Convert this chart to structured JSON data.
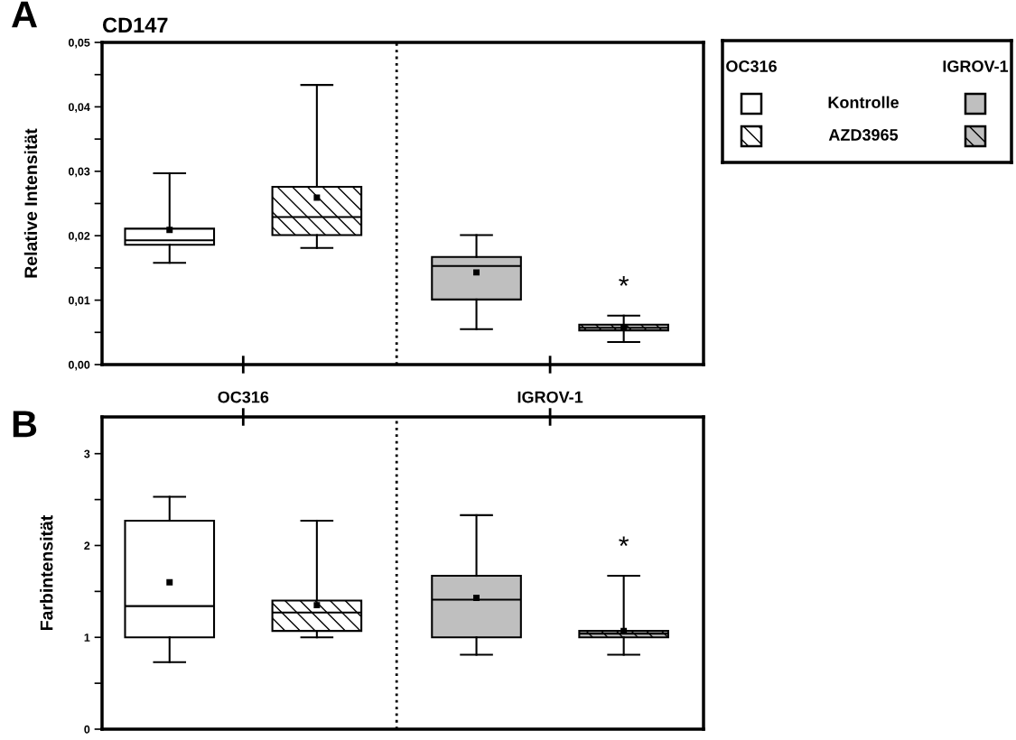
{
  "chart_data": [
    {
      "type": "box",
      "title": "CD147",
      "ylabel": "Relative Intensität",
      "categories": [
        "OC316",
        "IGROV-1"
      ],
      "legend": "right",
      "grid": false,
      "tick_labels": true,
      "ylim": [
        0,
        0.05
      ],
      "yticks": [
        {
          "value": 0,
          "label": "0,00"
        },
        {
          "value": 0.005,
          "label": null
        },
        {
          "value": 0.01,
          "label": "0,01"
        },
        {
          "value": 0.015,
          "label": null
        },
        {
          "value": 0.02,
          "label": "0,02"
        },
        {
          "value": 0.025,
          "label": null
        },
        {
          "value": 0.03,
          "label": "0,03"
        },
        {
          "value": 0.035,
          "label": null
        },
        {
          "value": 0.04,
          "label": "0,04"
        },
        {
          "value": 0.045,
          "label": null
        },
        {
          "value": 0.05,
          "label": "0,05"
        }
      ],
      "annotations": [
        "A",
        "*"
      ],
      "series": [
        {
          "name": "Kontrolle",
          "colors": [
            "#ffffff",
            "#bfbfbf"
          ],
          "boxes": [
            {
              "low": 0.0158,
              "q1": 0.0186,
              "median": 0.0193,
              "q3": 0.0211,
              "high": 0.0297,
              "mean": 0.0209
            },
            {
              "low": 0.0055,
              "q1": 0.0101,
              "median": 0.0153,
              "q3": 0.0167,
              "high": 0.0201,
              "mean": 0.0143
            }
          ]
        },
        {
          "name": "AZD3965",
          "colors": [
            "#ffffff",
            "#bfbfbf"
          ],
          "boxes": [
            {
              "low": 0.0181,
              "q1": 0.0201,
              "median": 0.0229,
              "q3": 0.0276,
              "high": 0.0434,
              "mean": 0.0259
            },
            {
              "low": 0.0035,
              "q1": 0.0053,
              "median": 0.0057,
              "q3": 0.0062,
              "high": 0.0076,
              "mean": 0.0058
            }
          ]
        }
      ]
    },
    {
      "type": "box",
      "ylabel": "Farbintensität",
      "categories": [
        null,
        null
      ],
      "grid": false,
      "tick_labels": "y",
      "ylim": [
        0,
        3.4
      ],
      "yticks": [
        0,
        {
          "value": 0.5,
          "label": null
        },
        1,
        {
          "value": 1.5,
          "label": null
        },
        2,
        {
          "value": 2.5,
          "label": null
        },
        3
      ],
      "annotations": [
        "B",
        "*"
      ],
      "series": [
        {
          "colors": [
            "#ffffff",
            "#bfbfbf"
          ],
          "boxes": [
            {
              "low": 0.73,
              "q1": 1.0,
              "median": 1.34,
              "q3": 2.27,
              "high": 2.53,
              "mean": 1.6
            },
            {
              "low": 0.81,
              "q1": 1.0,
              "median": 1.41,
              "q3": 1.67,
              "high": 2.33,
              "mean": 1.43
            }
          ]
        },
        {
          "colors": [
            "#ffffff",
            "#bfbfbf"
          ],
          "boxes": [
            {
              "low": 1.0,
              "q1": 1.07,
              "median": 1.27,
              "q3": 1.4,
              "high": 2.27,
              "mean": 1.35
            },
            {
              "low": 0.81,
              "q1": 1.0,
              "median": 1.04,
              "q3": 1.07,
              "high": 1.67,
              "mean": 1.07
            }
          ]
        }
      ]
    }
  ]
}
